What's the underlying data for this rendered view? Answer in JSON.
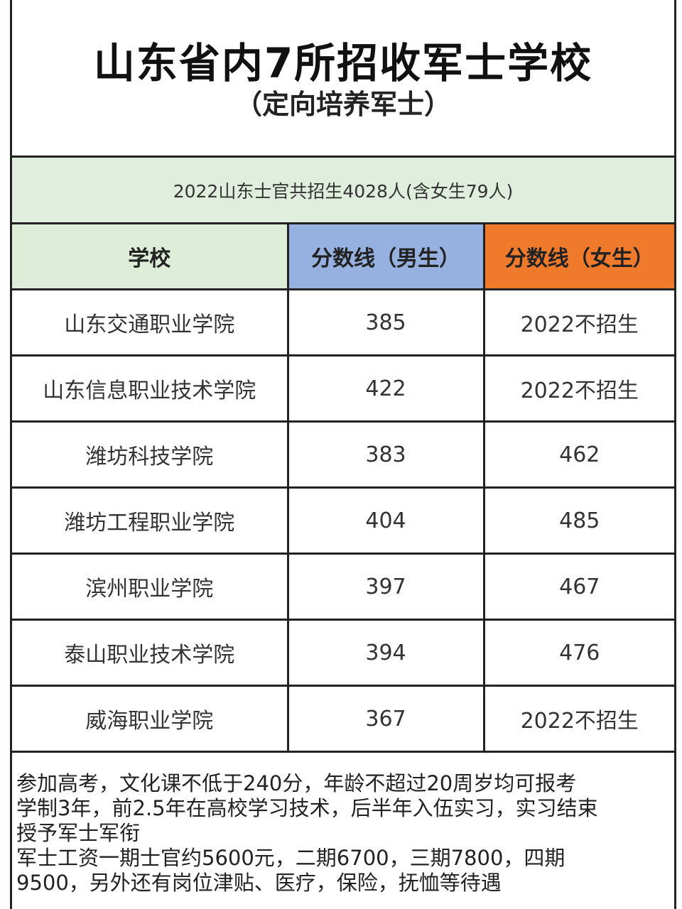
{
  "header": {
    "title": "山东省内7所招收军士学校",
    "subtitle": "（定向培养军士）"
  },
  "summary": "2022山东士官共招生4028人(含女生79人)",
  "table": {
    "headers": [
      "学校",
      "分数线（男生）",
      "分数线（女生）"
    ],
    "rows": [
      [
        "山东交通职业学院",
        "385",
        "2022不招生"
      ],
      [
        "山东信息职业技术学院",
        "422",
        "2022不招生"
      ],
      [
        "潍坊科技学院",
        "383",
        "462"
      ],
      [
        "潍坊工程职业学院",
        "404",
        "485"
      ],
      [
        "滨州职业学院",
        "397",
        "467"
      ],
      [
        "泰山职业技术学院",
        "394",
        "476"
      ],
      [
        "威海职业学院",
        "367",
        "2022不招生"
      ]
    ]
  },
  "header_colors": {
    "school": "#deedd7",
    "male": "#96b1e0",
    "female": "#ef7a2c",
    "summary_bg": "#dfeedd"
  },
  "notes": [
    "参加高考，文化课不低于240分，年龄不超过20周岁均可报考",
    "学制3年，前2.5年在高校学习技术，后半年入伍实习，实习结束",
    "授予军士军衔",
    "军士工资一期士官约5600元，二期6700，三期7800，四期",
    "9500，另外还有岗位津贴、医疗，保险，抚恤等待遇"
  ]
}
